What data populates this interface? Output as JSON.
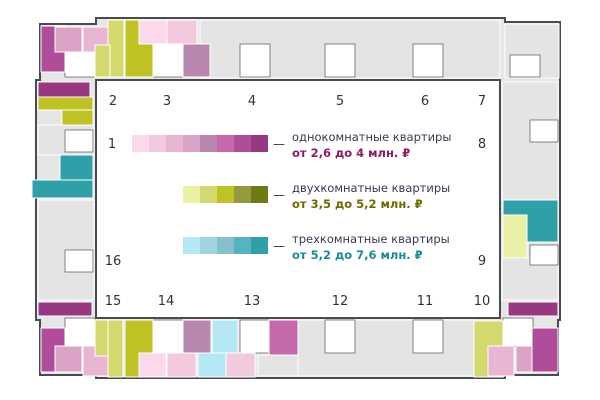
{
  "section_numbers": [
    "1",
    "2",
    "3",
    "4",
    "5",
    "6",
    "7",
    "8",
    "9",
    "10",
    "11",
    "12",
    "13",
    "14",
    "15",
    "16"
  ],
  "legend": [
    {
      "title": "однокомнатные квартиры",
      "price": "от 2,6 до 4 млн. ₽",
      "price_color": "#8e1a6a",
      "swatches": [
        "#fbd9ea",
        "#f3c9dd",
        "#e8b5d2",
        "#dba4c6",
        "#b887ad",
        "#c569aa",
        "#b04d9a",
        "#983782"
      ]
    },
    {
      "title": "двухкомнатные квартиры",
      "price": "от 3,5 до 5,2 млн. ₽",
      "price_color": "#6b6b00",
      "swatches": [
        "#eaf0a5",
        "#d3d96d",
        "#bfc225",
        "#939b3a",
        "#707a15"
      ]
    },
    {
      "title": "трехкомнатные квартиры",
      "price": "от 5,2 до 7,6 млн. ₽",
      "price_color": "#1a8a96",
      "swatches": [
        "#b4e8f4",
        "#9fd4df",
        "#86c0cc",
        "#56b3c1",
        "#2fa0a8"
      ]
    }
  ],
  "legend_dash": "—"
}
